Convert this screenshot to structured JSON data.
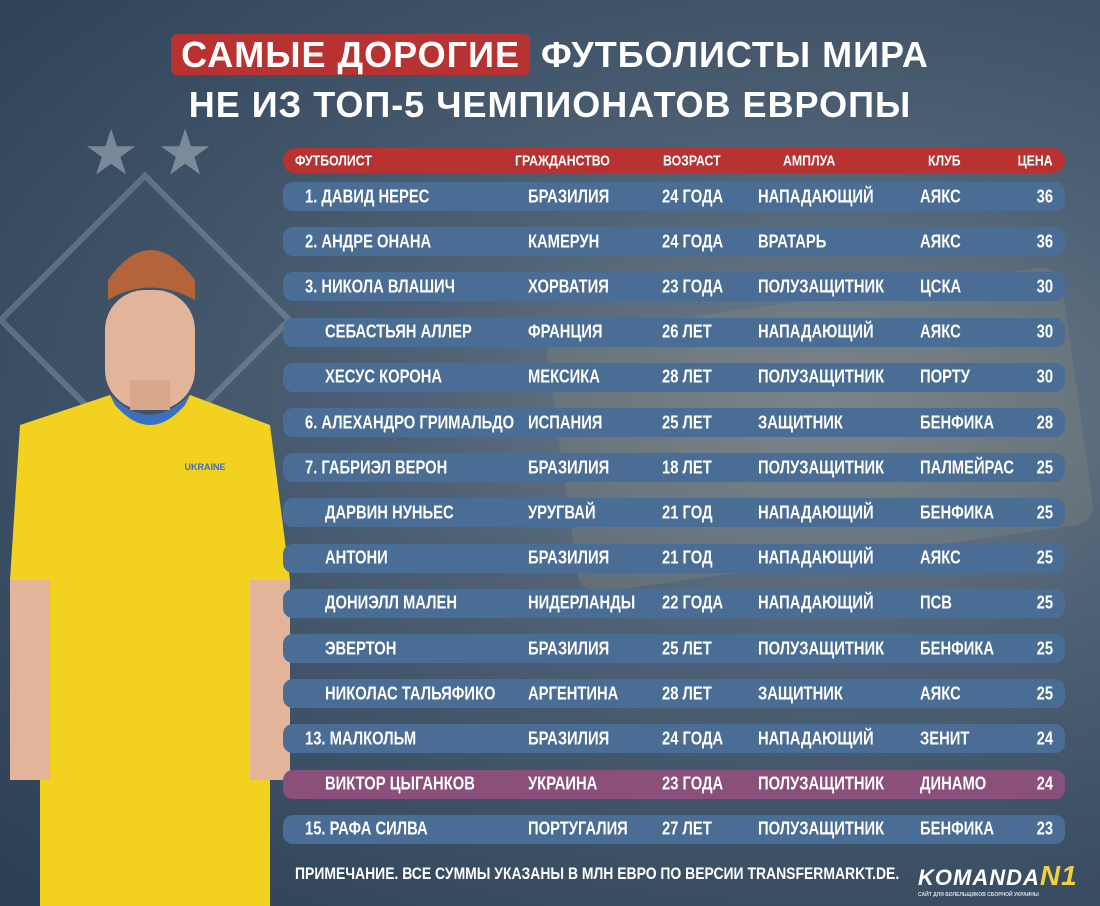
{
  "title": {
    "highlight": "САМЫЕ ДОРОГИЕ",
    "line1_rest": "ФУТБОЛИСТЫ МИРА",
    "line2": "НЕ ИЗ ТОП-5 ЧЕМПИОНАТОВ ЕВРОПЫ"
  },
  "colors": {
    "header": "#b83232",
    "row": "#4a6d96",
    "highlight_row": "#8a4f7a",
    "background": "#3a4f66"
  },
  "table": {
    "headers": {
      "player": "ФУТБОЛИСТ",
      "citizenship": "ГРАЖДАНСТВО",
      "age": "ВОЗРАСТ",
      "role": "АМПЛУА",
      "club": "КЛУБ",
      "price": "ЦЕНА"
    },
    "rows": [
      {
        "name": "1. ДАВИД НЕРЕС",
        "citizenship": "БРАЗИЛИЯ",
        "age": "24 ГОДА",
        "role": "НАПАДАЮЩИЙ",
        "club": "АЯКС",
        "price": "36"
      },
      {
        "name": "2. АНДРЕ ОНАНА",
        "citizenship": "КАМЕРУН",
        "age": "24 ГОДА",
        "role": "ВРАТАРЬ",
        "club": "АЯКС",
        "price": "36"
      },
      {
        "name": "3. НИКОЛА ВЛАШИЧ",
        "citizenship": "ХОРВАТИЯ",
        "age": "23 ГОДА",
        "role": "ПОЛУЗАЩИТНИК",
        "club": "ЦСКА",
        "price": "30"
      },
      {
        "name": "СЕБАСТЬЯН АЛЛЕР",
        "citizenship": "ФРАНЦИЯ",
        "age": "26 ЛЕТ",
        "role": "НАПАДАЮЩИЙ",
        "club": "АЯКС",
        "price": "30"
      },
      {
        "name": "ХЕСУС КОРОНА",
        "citizenship": "МЕКСИКА",
        "age": "28 ЛЕТ",
        "role": "ПОЛУЗАЩИТНИК",
        "club": "ПОРТУ",
        "price": "30"
      },
      {
        "name": "6. АЛЕХАНДРО ГРИМАЛЬДО",
        "citizenship": "ИСПАНИЯ",
        "age": "25 ЛЕТ",
        "role": "ЗАЩИТНИК",
        "club": "БЕНФИКА",
        "price": "28"
      },
      {
        "name": "7. ГАБРИЭЛ ВЕРОН",
        "citizenship": "БРАЗИЛИЯ",
        "age": "18 ЛЕТ",
        "role": "ПОЛУЗАЩИТНИК",
        "club": "ПАЛМЕЙРАС",
        "price": "25"
      },
      {
        "name": "ДАРВИН НУНЬЕС",
        "citizenship": "УРУГВАЙ",
        "age": "21 ГОД",
        "role": "НАПАДАЮЩИЙ",
        "club": "БЕНФИКА",
        "price": "25"
      },
      {
        "name": "АНТОНИ",
        "citizenship": "БРАЗИЛИЯ",
        "age": "21 ГОД",
        "role": "НАПАДАЮЩИЙ",
        "club": "АЯКС",
        "price": "25"
      },
      {
        "name": "ДОНИЭЛЛ МАЛЕН",
        "citizenship": "НИДЕРЛАНДЫ",
        "age": "22 ГОДА",
        "role": "НАПАДАЮЩИЙ",
        "club": "ПСВ",
        "price": "25"
      },
      {
        "name": "ЭВЕРТОН",
        "citizenship": "БРАЗИЛИЯ",
        "age": "25 ЛЕТ",
        "role": "ПОЛУЗАЩИТНИК",
        "club": "БЕНФИКА",
        "price": "25"
      },
      {
        "name": "НИКОЛАС ТАЛЬЯФИКО",
        "citizenship": "АРГЕНТИНА",
        "age": "28 ЛЕТ",
        "role": "ЗАЩИТНИК",
        "club": "АЯКС",
        "price": "25"
      },
      {
        "name": "13. МАЛКОЛЬМ",
        "citizenship": "БРАЗИЛИЯ",
        "age": "24 ГОДА",
        "role": "НАПАДАЮЩИЙ",
        "club": "ЗЕНИТ",
        "price": "24"
      },
      {
        "name": "ВИКТОР ЦЫГАНКОВ",
        "citizenship": "УКРАИНА",
        "age": "23 ГОДА",
        "role": "ПОЛУЗАЩИТНИК",
        "club": "ДИНАМО",
        "price": "24",
        "highlight": true
      },
      {
        "name": "15. РАФА СИЛВА",
        "citizenship": "ПОРТУГАЛИЯ",
        "age": "27 ЛЕТ",
        "role": "ПОЛУЗАЩИТНИК",
        "club": "БЕНФИКА",
        "price": "23"
      }
    ]
  },
  "footnote": "ПРИМЕЧАНИЕ. ВСЕ СУММЫ УКАЗАНЫ В МЛН ЕВРО ПО ВЕРСИИ TRANSFERMARKT.DE.",
  "logo": {
    "text": "KOMANDA",
    "mark": "N1",
    "tagline": "САЙТ ДЛЯ БОЛЕЛЬЩИКОВ СБОРНОЙ УКРАИНЫ"
  },
  "shirt_text": "UKRAINE"
}
